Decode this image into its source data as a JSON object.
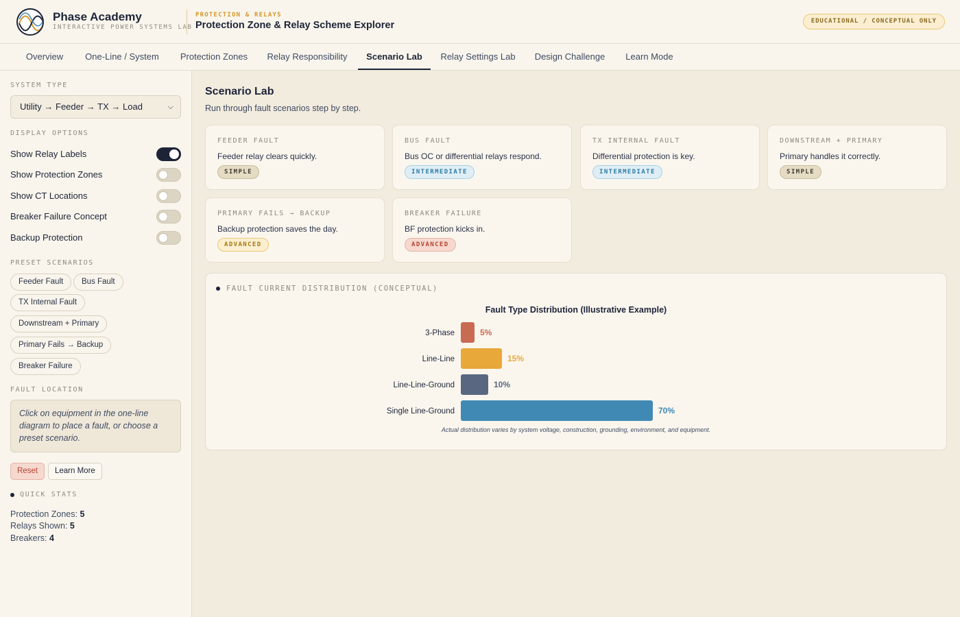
{
  "app": {
    "brand": "Phase Academy",
    "brand_sub": "INTERACTIVE POWER SYSTEMS LAB",
    "kicker": "PROTECTION & RELAYS",
    "title": "Protection Zone & Relay Scheme Explorer",
    "badge": "EDUCATIONAL / CONCEPTUAL ONLY"
  },
  "tabs": [
    {
      "label": "Overview"
    },
    {
      "label": "One-Line / System"
    },
    {
      "label": "Protection Zones"
    },
    {
      "label": "Relay Responsibility"
    },
    {
      "label": "Scenario Lab",
      "active": true
    },
    {
      "label": "Relay Settings Lab"
    },
    {
      "label": "Design Challenge"
    },
    {
      "label": "Learn Mode"
    }
  ],
  "sidebar": {
    "system_type_label": "SYSTEM TYPE",
    "system_type_value": "Utility → Feeder → TX → Load",
    "display_label": "DISPLAY OPTIONS",
    "options": [
      {
        "label": "Show Relay Labels",
        "on": true
      },
      {
        "label": "Show Protection Zones",
        "on": false
      },
      {
        "label": "Show CT Locations",
        "on": false
      },
      {
        "label": "Breaker Failure Concept",
        "on": false
      },
      {
        "label": "Backup Protection",
        "on": false
      }
    ],
    "presets_label": "PRESET SCENARIOS",
    "presets": [
      "Feeder Fault",
      "Bus Fault",
      "TX Internal Fault",
      "Downstream + Primary",
      "Primary Fails → Backup",
      "Breaker Failure"
    ],
    "fault_label": "FAULT LOCATION",
    "fault_hint": "Click on equipment in the one-line diagram to place a fault, or choose a preset scenario.",
    "reset_label": "Reset",
    "learn_label": "Learn More",
    "stats_label": "QUICK STATS",
    "stats": [
      {
        "label": "Protection Zones:",
        "value": "5"
      },
      {
        "label": "Relays Shown:",
        "value": "5"
      },
      {
        "label": "Breakers:",
        "value": "4"
      }
    ]
  },
  "main": {
    "title": "Scenario Lab",
    "subtitle": "Run through fault scenarios step by step.",
    "scenarios": [
      {
        "kicker": "FEEDER FAULT",
        "desc": "Feeder relay clears quickly.",
        "level": "SIMPLE"
      },
      {
        "kicker": "BUS FAULT",
        "desc": "Bus OC or differential relays respond.",
        "level": "INTERMEDIATE"
      },
      {
        "kicker": "TX INTERNAL FAULT",
        "desc": "Differential protection is key.",
        "level": "INTERMEDIATE"
      },
      {
        "kicker": "DOWNSTREAM + PRIMARY",
        "desc": "Primary handles it correctly.",
        "level": "SIMPLE"
      },
      {
        "kicker": "PRIMARY FAILS → BACKUP",
        "desc": "Backup protection saves the day.",
        "level": "ADVANCED"
      },
      {
        "kicker": "BREAKER FAILURE",
        "desc": "BF protection kicks in.",
        "level": "ADVANCED"
      }
    ],
    "chart_panel_label": "FAULT CURRENT DISTRIBUTION (CONCEPTUAL)"
  },
  "colors": {
    "navy": "#1d2438",
    "three_phase": "#c96a52",
    "line_line": "#e9a83a",
    "line_line_ground": "#5a6780",
    "single_line_ground": "#4189b5"
  },
  "chart_data": {
    "type": "bar",
    "orientation": "horizontal",
    "title": "Fault Type Distribution (Illustrative Example)",
    "categories": [
      "3-Phase",
      "Line-Line",
      "Line-Line-Ground",
      "Single Line-Ground"
    ],
    "values": [
      5,
      15,
      10,
      70
    ],
    "value_labels": [
      "5%",
      "15%",
      "10%",
      "70%"
    ],
    "colors": [
      "#c96a52",
      "#e9a83a",
      "#5a6780",
      "#4189b5"
    ],
    "xlim": [
      0,
      100
    ],
    "grid": false,
    "footnote": "Actual distribution varies by system voltage, construction, grounding, environment, and equipment."
  }
}
